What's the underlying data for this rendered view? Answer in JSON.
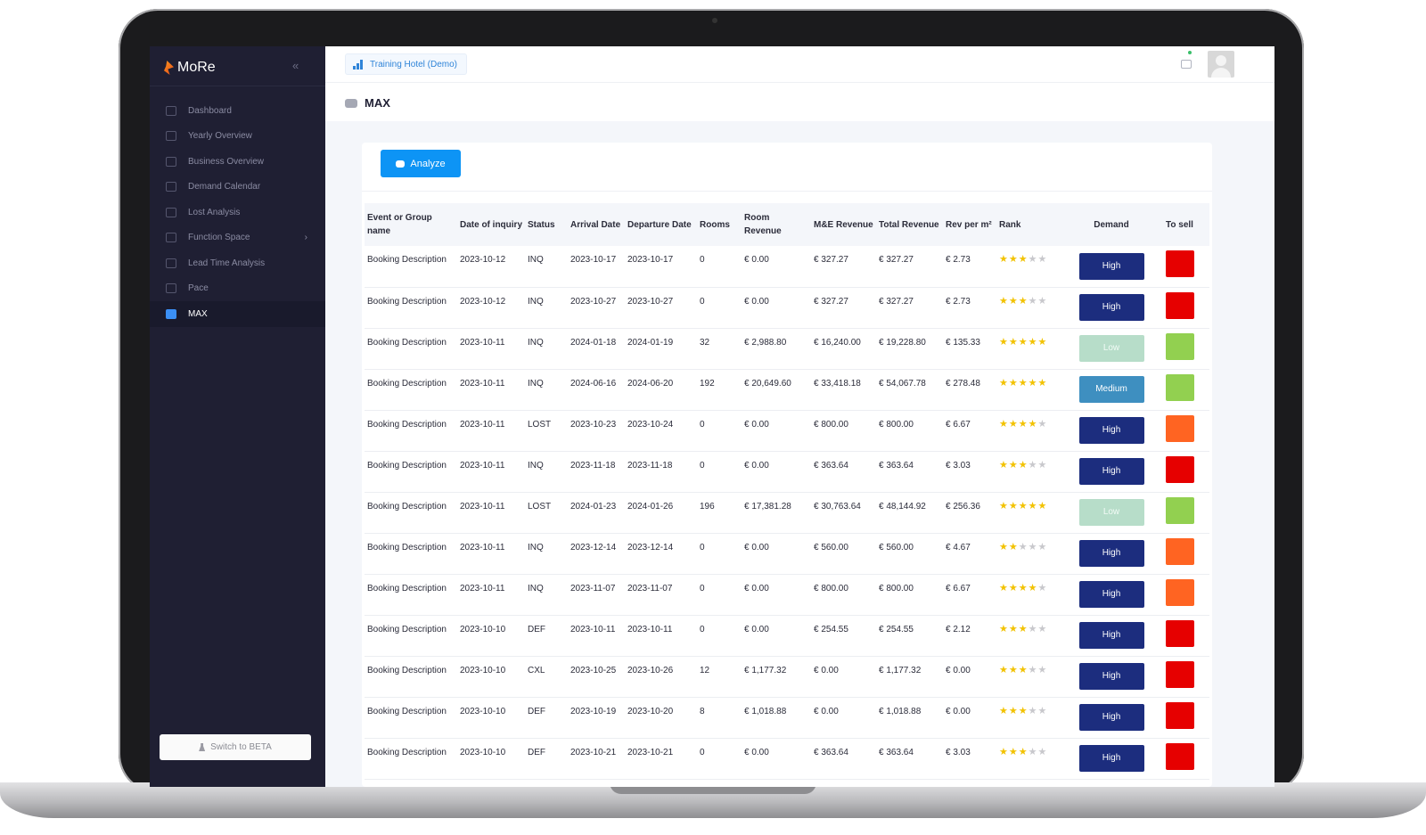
{
  "app": {
    "name": "MoRe"
  },
  "sidebar": {
    "items": [
      {
        "label": "Dashboard",
        "icon": "grid-icon"
      },
      {
        "label": "Yearly Overview",
        "icon": "bar-chart-icon"
      },
      {
        "label": "Business Overview",
        "icon": "list-icon"
      },
      {
        "label": "Demand Calendar",
        "icon": "calendar-icon"
      },
      {
        "label": "Lost Analysis",
        "icon": "circle-x-icon"
      },
      {
        "label": "Function Space",
        "icon": "table-icon",
        "has_submenu": true
      },
      {
        "label": "Lead Time Analysis",
        "icon": "trend-icon"
      },
      {
        "label": "Pace",
        "icon": "area-chart-icon"
      },
      {
        "label": "MAX",
        "icon": "robot-icon",
        "active": true
      }
    ],
    "beta_button": "Switch to BETA"
  },
  "header": {
    "hotel": "Training Hotel (Demo)"
  },
  "page": {
    "title": "MAX",
    "analyze_label": "Analyze"
  },
  "table": {
    "headers": [
      "Event or Group name",
      "Date of inquiry",
      "Status",
      "Arrival Date",
      "Departure Date",
      "Rooms",
      "Room Revenue",
      "M&E Revenue",
      "Total Revenue",
      "Rev per m²",
      "Rank",
      "Demand",
      "To sell"
    ],
    "rows": [
      {
        "name": "Booking Description",
        "inquiry": "2023-10-12",
        "status": "INQ",
        "arrival": "2023-10-17",
        "departure": "2023-10-17",
        "rooms": "0",
        "room_rev": "€ 0.00",
        "me_rev": "€ 327.27",
        "total_rev": "€ 327.27",
        "rev_m2": "€ 2.73",
        "rank": 3,
        "demand": "High",
        "to_sell_color": "#e60000"
      },
      {
        "name": "Booking Description",
        "inquiry": "2023-10-12",
        "status": "INQ",
        "arrival": "2023-10-27",
        "departure": "2023-10-27",
        "rooms": "0",
        "room_rev": "€ 0.00",
        "me_rev": "€ 327.27",
        "total_rev": "€ 327.27",
        "rev_m2": "€ 2.73",
        "rank": 3,
        "demand": "High",
        "to_sell_color": "#e60000"
      },
      {
        "name": "Booking Description",
        "inquiry": "2023-10-11",
        "status": "INQ",
        "arrival": "2024-01-18",
        "departure": "2024-01-19",
        "rooms": "32",
        "room_rev": "€ 2,988.80",
        "me_rev": "€ 16,240.00",
        "total_rev": "€ 19,228.80",
        "rev_m2": "€ 135.33",
        "rank": 5,
        "demand": "Low",
        "to_sell_color": "#92d050"
      },
      {
        "name": "Booking Description",
        "inquiry": "2023-10-11",
        "status": "INQ",
        "arrival": "2024-06-16",
        "departure": "2024-06-20",
        "rooms": "192",
        "room_rev": "€ 20,649.60",
        "me_rev": "€ 33,418.18",
        "total_rev": "€ 54,067.78",
        "rev_m2": "€ 278.48",
        "rank": 5,
        "demand": "Medium",
        "to_sell_color": "#92d050"
      },
      {
        "name": "Booking Description",
        "inquiry": "2023-10-11",
        "status": "LOST",
        "arrival": "2023-10-23",
        "departure": "2023-10-24",
        "rooms": "0",
        "room_rev": "€ 0.00",
        "me_rev": "€ 800.00",
        "total_rev": "€ 800.00",
        "rev_m2": "€ 6.67",
        "rank": 4,
        "demand": "High",
        "to_sell_color": "#ff6422"
      },
      {
        "name": "Booking Description",
        "inquiry": "2023-10-11",
        "status": "INQ",
        "arrival": "2023-11-18",
        "departure": "2023-11-18",
        "rooms": "0",
        "room_rev": "€ 0.00",
        "me_rev": "€ 363.64",
        "total_rev": "€ 363.64",
        "rev_m2": "€ 3.03",
        "rank": 3,
        "demand": "High",
        "to_sell_color": "#e60000"
      },
      {
        "name": "Booking Description",
        "inquiry": "2023-10-11",
        "status": "LOST",
        "arrival": "2024-01-23",
        "departure": "2024-01-26",
        "rooms": "196",
        "room_rev": "€ 17,381.28",
        "me_rev": "€ 30,763.64",
        "total_rev": "€ 48,144.92",
        "rev_m2": "€ 256.36",
        "rank": 5,
        "demand": "Low",
        "to_sell_color": "#92d050"
      },
      {
        "name": "Booking Description",
        "inquiry": "2023-10-11",
        "status": "INQ",
        "arrival": "2023-12-14",
        "departure": "2023-12-14",
        "rooms": "0",
        "room_rev": "€ 0.00",
        "me_rev": "€ 560.00",
        "total_rev": "€ 560.00",
        "rev_m2": "€ 4.67",
        "rank": 2,
        "demand": "High",
        "to_sell_color": "#ff6422"
      },
      {
        "name": "Booking Description",
        "inquiry": "2023-10-11",
        "status": "INQ",
        "arrival": "2023-11-07",
        "departure": "2023-11-07",
        "rooms": "0",
        "room_rev": "€ 0.00",
        "me_rev": "€ 800.00",
        "total_rev": "€ 800.00",
        "rev_m2": "€ 6.67",
        "rank": 4,
        "demand": "High",
        "to_sell_color": "#ff6422"
      },
      {
        "name": "Booking Description",
        "inquiry": "2023-10-10",
        "status": "DEF",
        "arrival": "2023-10-11",
        "departure": "2023-10-11",
        "rooms": "0",
        "room_rev": "€ 0.00",
        "me_rev": "€ 254.55",
        "total_rev": "€ 254.55",
        "rev_m2": "€ 2.12",
        "rank": 3,
        "demand": "High",
        "to_sell_color": "#e60000"
      },
      {
        "name": "Booking Description",
        "inquiry": "2023-10-10",
        "status": "CXL",
        "arrival": "2023-10-25",
        "departure": "2023-10-26",
        "rooms": "12",
        "room_rev": "€ 1,177.32",
        "me_rev": "€ 0.00",
        "total_rev": "€ 1,177.32",
        "rev_m2": "€ 0.00",
        "rank": 3,
        "demand": "High",
        "to_sell_color": "#e60000"
      },
      {
        "name": "Booking Description",
        "inquiry": "2023-10-10",
        "status": "DEF",
        "arrival": "2023-10-19",
        "departure": "2023-10-20",
        "rooms": "8",
        "room_rev": "€ 1,018.88",
        "me_rev": "€ 0.00",
        "total_rev": "€ 1,018.88",
        "rev_m2": "€ 0.00",
        "rank": 3,
        "demand": "High",
        "to_sell_color": "#e60000"
      },
      {
        "name": "Booking Description",
        "inquiry": "2023-10-10",
        "status": "DEF",
        "arrival": "2023-10-21",
        "departure": "2023-10-21",
        "rooms": "0",
        "room_rev": "€ 0.00",
        "me_rev": "€ 363.64",
        "total_rev": "€ 363.64",
        "rev_m2": "€ 3.03",
        "rank": 3,
        "demand": "High",
        "to_sell_color": "#e60000"
      }
    ]
  },
  "colors": {
    "demand_high": "#1c2d7e",
    "demand_medium": "#3e8fc0",
    "demand_low": "#b7ddc9",
    "accent": "#0d94f5"
  }
}
